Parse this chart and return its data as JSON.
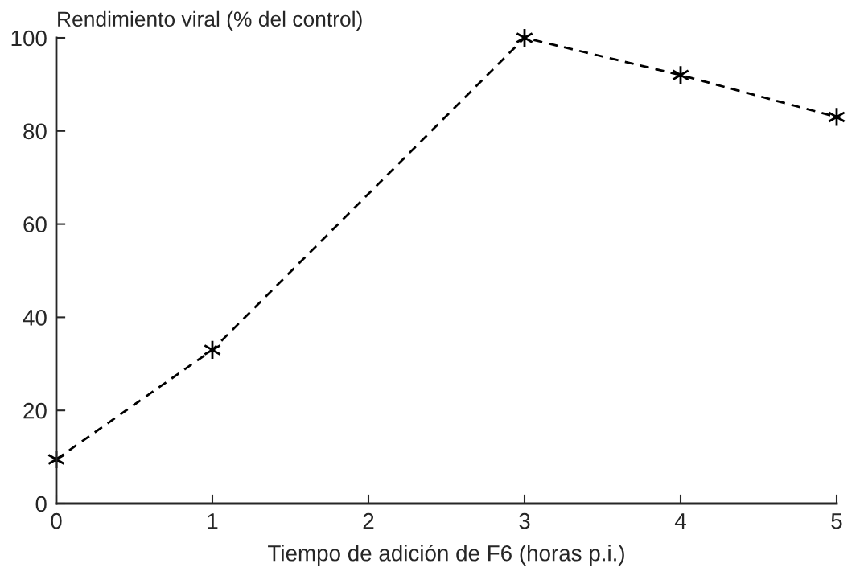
{
  "chart_data": {
    "type": "line",
    "ylabel": "Rendimiento viral (% del control)",
    "xlabel": "Tiempo de adición de F6 (horas p.i.)",
    "x": [
      0,
      1,
      3,
      4,
      5
    ],
    "series": [
      {
        "color": "#000000",
        "values": [
          9.5,
          33,
          100,
          92,
          83
        ]
      }
    ],
    "xlim": [
      0,
      5
    ],
    "xticks": [
      0,
      1,
      2,
      3,
      4,
      5
    ],
    "ylim": [
      0,
      100
    ],
    "yticks": [
      0,
      20,
      40,
      60,
      80,
      100
    ],
    "marker": "cross",
    "line_style": "dashed",
    "grid": false,
    "legend": false
  }
}
